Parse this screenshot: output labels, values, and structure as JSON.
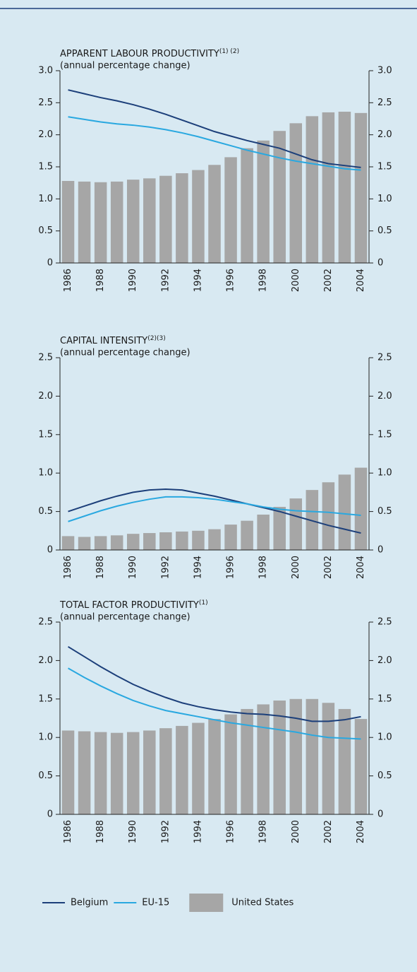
{
  "chart_data": [
    {
      "type": "bar_line",
      "title": "APPARENT LABOUR PRODUCTIVITY",
      "title_superscript": "(1) (2)",
      "subtitle": "(annual percentage change)",
      "categories": [
        "1986",
        null,
        "1988",
        null,
        "1990",
        null,
        "1992",
        null,
        "1994",
        null,
        "1996",
        null,
        "1998",
        null,
        "2000",
        null,
        "2002",
        null,
        "2004"
      ],
      "ylim": [
        0,
        3
      ],
      "yticks": [
        0,
        0.5,
        {
          "value": 1,
          "label": "1.0"
        },
        1.5,
        {
          "value": 2,
          "label": "2.0"
        },
        2.5,
        {
          "value": 3,
          "label": "3.0"
        }
      ],
      "series": [
        {
          "name": "Belgium",
          "kind": "line",
          "color": "#1c3f7a",
          "values": [
            2.7,
            2.64,
            2.58,
            2.53,
            2.47,
            2.4,
            2.32,
            2.23,
            2.14,
            2.05,
            1.98,
            1.91,
            1.85,
            1.79,
            1.7,
            1.61,
            1.55,
            1.52,
            1.49
          ]
        },
        {
          "name": "EU-15",
          "kind": "line",
          "color": "#29a8e0",
          "values": [
            2.28,
            2.24,
            2.2,
            2.17,
            2.15,
            2.12,
            2.08,
            2.03,
            1.97,
            1.9,
            1.83,
            1.76,
            1.7,
            1.64,
            1.59,
            1.55,
            1.51,
            1.47,
            1.45
          ]
        },
        {
          "name": "United States",
          "kind": "bar",
          "color": "#a6a6a6",
          "values": [
            1.28,
            1.27,
            1.26,
            1.27,
            1.3,
            1.32,
            1.36,
            1.4,
            1.45,
            1.53,
            1.65,
            1.79,
            1.91,
            2.06,
            2.18,
            2.29,
            2.35,
            2.36,
            2.34
          ]
        }
      ]
    },
    {
      "type": "bar_line",
      "title": "CAPITAL INTENSITY",
      "title_superscript": "(2)(3)",
      "subtitle": "(annual percentage change)",
      "categories": [
        "1986",
        null,
        "1988",
        null,
        "1990",
        null,
        "1992",
        null,
        "1994",
        null,
        "1996",
        null,
        "1998",
        null,
        "2000",
        null,
        "2002",
        null,
        "2004"
      ],
      "ylim": [
        0,
        2.5
      ],
      "yticks": [
        0,
        0.5,
        {
          "value": 1,
          "label": "1.0"
        },
        1.5,
        {
          "value": 2,
          "label": "2.0"
        },
        2.5
      ],
      "series": [
        {
          "name": "Belgium",
          "kind": "line",
          "color": "#1c3f7a",
          "values": [
            0.5,
            0.57,
            0.64,
            0.7,
            0.75,
            0.78,
            0.79,
            0.78,
            0.74,
            0.7,
            0.65,
            0.6,
            0.55,
            0.5,
            0.44,
            0.38,
            0.32,
            0.27,
            0.22
          ]
        },
        {
          "name": "EU-15",
          "kind": "line",
          "color": "#29a8e0",
          "values": [
            0.37,
            0.44,
            0.51,
            0.57,
            0.62,
            0.66,
            0.69,
            0.69,
            0.68,
            0.66,
            0.63,
            0.6,
            0.56,
            0.53,
            0.51,
            0.5,
            0.49,
            0.47,
            0.45
          ]
        },
        {
          "name": "United States",
          "kind": "bar",
          "color": "#a6a6a6",
          "values": [
            0.18,
            0.17,
            0.18,
            0.19,
            0.21,
            0.22,
            0.23,
            0.24,
            0.25,
            0.27,
            0.33,
            0.38,
            0.46,
            0.56,
            0.67,
            0.78,
            0.88,
            0.98,
            1.07
          ]
        }
      ]
    },
    {
      "type": "bar_line",
      "title": "TOTAL FACTOR PRODUCTIVITY",
      "title_superscript": "(1)",
      "subtitle": "(annual percentage change)",
      "categories": [
        "1986",
        null,
        "1988",
        null,
        "1990",
        null,
        "1992",
        null,
        "1994",
        null,
        "1996",
        null,
        "1998",
        null,
        "2000",
        null,
        "2002",
        null,
        "2004"
      ],
      "ylim": [
        0,
        2.5
      ],
      "yticks": [
        0,
        0.5,
        {
          "value": 1,
          "label": "1.0"
        },
        1.5,
        {
          "value": 2,
          "label": "2.0"
        },
        2.5
      ],
      "series": [
        {
          "name": "Belgium",
          "kind": "line",
          "color": "#1c3f7a",
          "values": [
            2.18,
            2.05,
            1.92,
            1.8,
            1.69,
            1.6,
            1.52,
            1.45,
            1.4,
            1.36,
            1.33,
            1.31,
            1.3,
            1.28,
            1.25,
            1.21,
            1.21,
            1.23,
            1.27
          ]
        },
        {
          "name": "EU-15",
          "kind": "line",
          "color": "#29a8e0",
          "values": [
            1.9,
            1.78,
            1.67,
            1.57,
            1.48,
            1.41,
            1.35,
            1.31,
            1.27,
            1.23,
            1.19,
            1.16,
            1.13,
            1.1,
            1.07,
            1.03,
            1.0,
            0.99,
            0.98
          ]
        },
        {
          "name": "United States",
          "kind": "bar",
          "color": "#a6a6a6",
          "values": [
            1.09,
            1.08,
            1.07,
            1.06,
            1.07,
            1.09,
            1.12,
            1.15,
            1.19,
            1.24,
            1.3,
            1.37,
            1.43,
            1.48,
            1.5,
            1.5,
            1.45,
            1.37,
            1.24
          ]
        }
      ]
    }
  ]
}
